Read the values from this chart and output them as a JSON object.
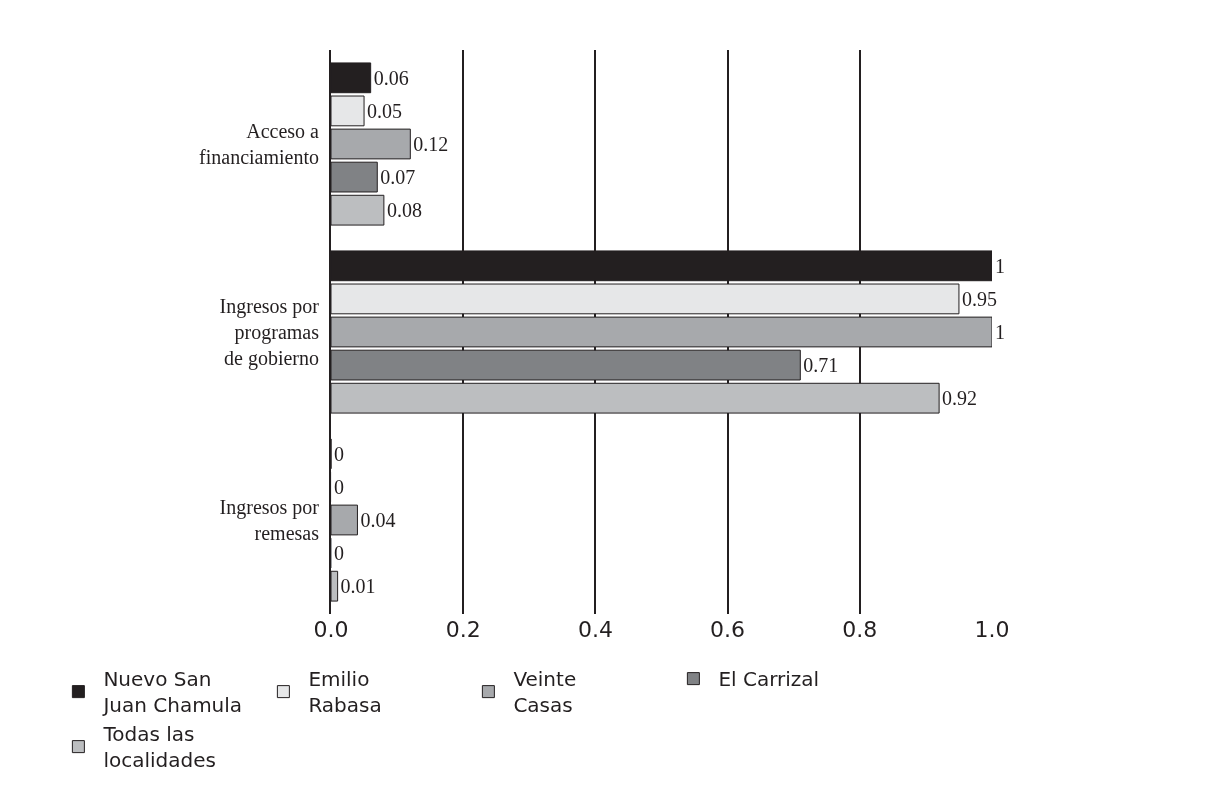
{
  "chart_data": {
    "type": "bar",
    "orientation": "horizontal",
    "categories": [
      "Acceso a\nfinanciamiento",
      "Ingresos por\nprogramas\nde gobierno",
      "Ingresos por\nremesas"
    ],
    "series": [
      {
        "name": "Nuevo San\nJuan Chamula",
        "color": "#231f20",
        "values": [
          0.06,
          1,
          0
        ]
      },
      {
        "name": "Emilio\nRabasa",
        "color": "#e6e7e8",
        "values": [
          0.05,
          0.95,
          0
        ]
      },
      {
        "name": "Veinte\nCasas",
        "color": "#a7a9ac",
        "values": [
          0.12,
          1,
          0.04
        ]
      },
      {
        "name": "El Carrizal",
        "color": "#808285",
        "values": [
          0.07,
          0.71,
          0
        ]
      },
      {
        "name": "Todas las\nlocalidades",
        "color": "#bcbec0",
        "values": [
          0.08,
          0.92,
          0.01
        ]
      }
    ],
    "xlim": [
      0,
      1
    ],
    "xticks": [
      {
        "value": 0,
        "label": "0.0"
      },
      {
        "value": 0.2,
        "label": "0.2"
      },
      {
        "value": 0.4,
        "label": "0.4"
      },
      {
        "value": 0.6,
        "label": "0.6"
      },
      {
        "value": 0.8,
        "label": "0.8"
      },
      {
        "value": 1,
        "label": "1.0"
      }
    ],
    "grid": "x",
    "legend": "bottom",
    "data_labels": true
  }
}
